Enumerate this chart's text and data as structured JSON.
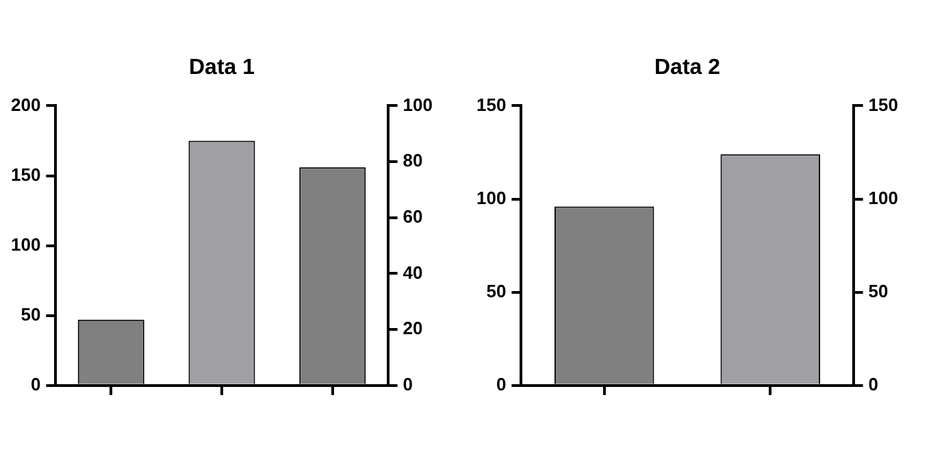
{
  "chart_data": [
    {
      "type": "bar",
      "title": "Data 1",
      "categories": [
        null,
        null,
        null
      ],
      "series": [
        {
          "values": [
            47,
            175,
            156
          ],
          "colors": [
            "#808080",
            "#a0a0a4",
            "#808080"
          ]
        }
      ],
      "ylim": [
        0,
        200
      ],
      "yticks": [
        0,
        50,
        100,
        150,
        200
      ],
      "y2lim": [
        0,
        100
      ],
      "y2ticks": [
        0,
        20,
        40,
        60,
        80,
        100
      ],
      "grid": false,
      "legend": false
    },
    {
      "type": "bar",
      "title": "Data 2",
      "categories": [
        null,
        null
      ],
      "series": [
        {
          "values": [
            96,
            124
          ],
          "colors": [
            "#808080",
            "#a0a0a4"
          ]
        }
      ],
      "ylim": [
        0,
        150
      ],
      "yticks": [
        0,
        50,
        100,
        150
      ],
      "y2lim": [
        0,
        150
      ],
      "y2ticks": [
        0,
        50,
        100,
        150
      ],
      "grid": false,
      "legend": false
    }
  ]
}
